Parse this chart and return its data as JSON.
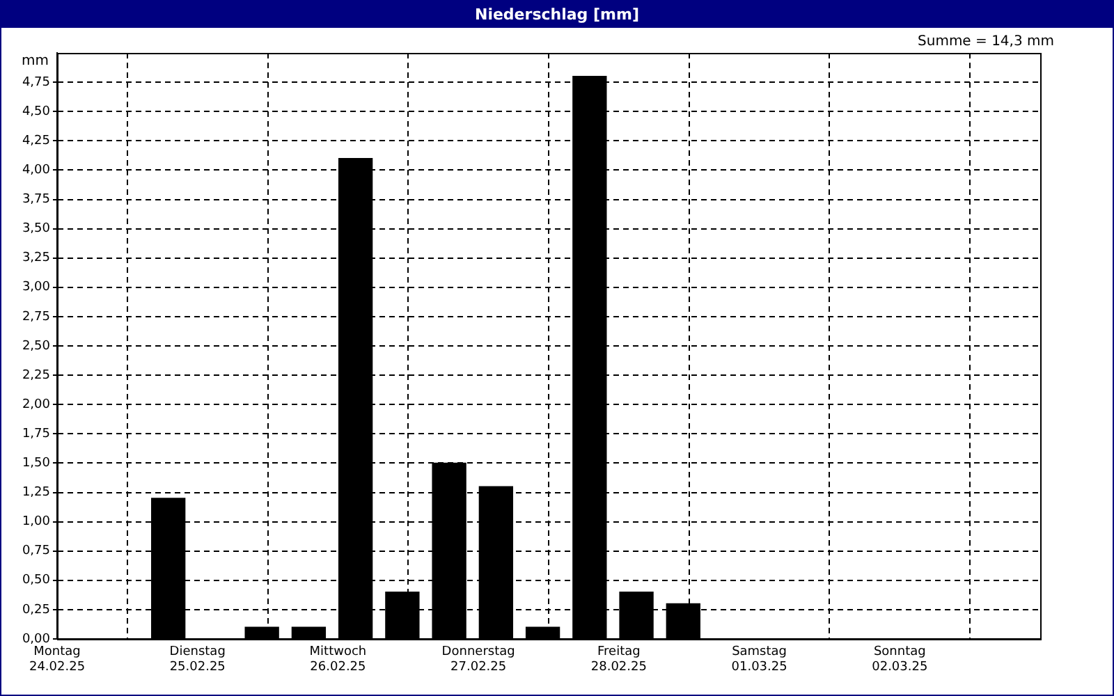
{
  "chart_data": {
    "type": "bar",
    "title": "Niederschlag [mm]",
    "ylabel": "mm",
    "annotations": [
      "Summe = 14,3 mm"
    ],
    "x": [
      "--02-24T19:00",
      "--02-25T11:00",
      "--02-25T19:00",
      "--02-26T03:00",
      "--02-26T11:00",
      "--02-26T19:00",
      "--02-27T03:00",
      "--02-27T11:00",
      "--02-27T19:00",
      "--02-28T03:00",
      "--02-28T11:00"
    ],
    "series": [
      {
        "color": "#000000",
        "values": [
          1.2,
          0.1,
          0.1,
          4.1,
          0.4,
          1.5,
          1.3,
          0.1,
          4.8,
          0.4,
          0.3
        ]
      }
    ],
    "xlim": [
      "--02-24",
      "--03-03"
    ],
    "xticks": [
      {
        "value": "--02-24",
        "label": "Montag\n24.02.25"
      },
      {
        "value": "--02-25",
        "label": "Dienstag\n25.02.25"
      },
      {
        "value": "--02-26",
        "label": "Mittwoch\n26.02.25"
      },
      {
        "value": "--02-27",
        "label": "Donnerstag\n27.02.25"
      },
      {
        "value": "--02-28",
        "label": "Freitag\n28.02.25"
      },
      {
        "value": "--03-01",
        "label": "Samstag\n01.03.25"
      },
      {
        "value": "--03-02",
        "label": "Sonntag\n02.03.25"
      }
    ],
    "ylim": [
      0,
      5
    ],
    "yticks": [
      {
        "value": 0,
        "label": "0,00"
      },
      {
        "value": 0.25,
        "label": "0,25"
      },
      {
        "value": 0.5,
        "label": "0,50"
      },
      {
        "value": 0.75,
        "label": "0,75"
      },
      {
        "value": 1,
        "label": "1,00"
      },
      {
        "value": 1.25,
        "label": "1,25"
      },
      {
        "value": 1.5,
        "label": "1,50"
      },
      {
        "value": 1.75,
        "label": "1,75"
      },
      {
        "value": 2,
        "label": "2,00"
      },
      {
        "value": 2.25,
        "label": "2,25"
      },
      {
        "value": 2.5,
        "label": "2,50"
      },
      {
        "value": 2.75,
        "label": "2,75"
      },
      {
        "value": 3,
        "label": "3,00"
      },
      {
        "value": 3.25,
        "label": "3,25"
      },
      {
        "value": 3.5,
        "label": "3,50"
      },
      {
        "value": 3.75,
        "label": "3,75"
      },
      {
        "value": 4,
        "label": "4,00"
      },
      {
        "value": 4.25,
        "label": "4,25"
      },
      {
        "value": 4.5,
        "label": "4,50"
      },
      {
        "value": 4.75,
        "label": "4,75"
      }
    ],
    "grid": true,
    "legend": false
  }
}
